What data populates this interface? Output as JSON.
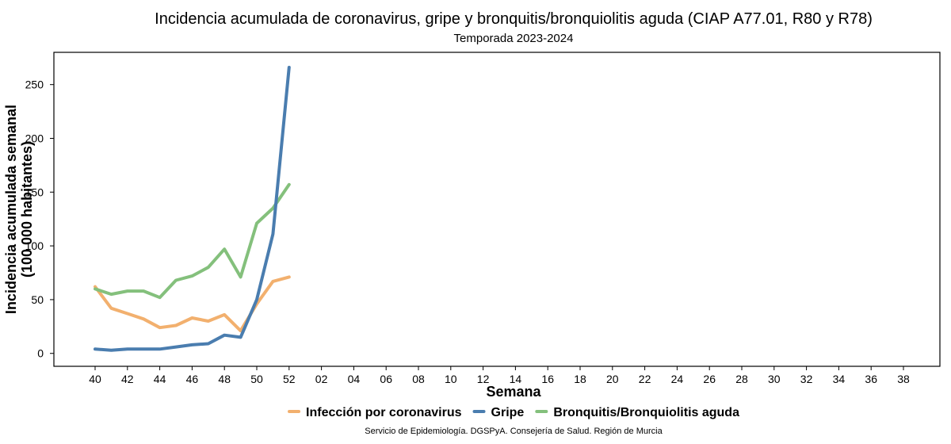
{
  "chart_data": {
    "type": "line",
    "title": "Incidencia acumulada de coronavirus, gripe y bronquitis/bronquiolitis aguda (CIAP A77.01, R80 y R78)",
    "subtitle": "Temporada 2023-2024",
    "xlabel": "Semana",
    "ylabel_lines": [
      "Incidencia acumulada semanal",
      "(100 000 habitantes)"
    ],
    "ylim": [
      -12,
      280
    ],
    "yticks": [
      0,
      50,
      100,
      150,
      200,
      250
    ],
    "week_order": [
      40,
      41,
      42,
      43,
      44,
      45,
      46,
      47,
      48,
      49,
      50,
      51,
      52,
      1,
      2,
      3,
      4,
      5,
      6,
      7,
      8,
      9,
      10,
      11,
      12,
      13,
      14,
      15,
      16,
      17,
      18,
      19,
      20,
      21,
      22,
      23,
      24,
      25,
      26,
      27,
      28,
      29,
      30,
      31,
      32,
      33,
      34,
      35,
      36,
      37,
      38,
      39
    ],
    "xtick_weeks": [
      40,
      42,
      44,
      46,
      48,
      50,
      52,
      2,
      4,
      6,
      8,
      10,
      12,
      14,
      16,
      18,
      20,
      22,
      24,
      26,
      28,
      30,
      32,
      34,
      36,
      38
    ],
    "xtick_labels": [
      "40",
      "42",
      "44",
      "46",
      "48",
      "50",
      "52",
      "02",
      "04",
      "06",
      "08",
      "10",
      "12",
      "14",
      "16",
      "18",
      "20",
      "22",
      "24",
      "26",
      "28",
      "30",
      "32",
      "34",
      "36",
      "38"
    ],
    "x": [
      40,
      41,
      42,
      43,
      44,
      45,
      46,
      47,
      48,
      49,
      50,
      51,
      52
    ],
    "series": [
      {
        "name": "Infección por coronavirus",
        "color": "#F2B06E",
        "values": [
          62,
          42,
          37,
          32,
          24,
          26,
          33,
          30,
          36,
          21,
          46,
          67,
          71
        ]
      },
      {
        "name": "Gripe",
        "color": "#4A7DAF",
        "values": [
          4,
          3,
          4,
          4,
          4,
          6,
          8,
          9,
          17,
          15,
          50,
          111,
          266
        ]
      },
      {
        "name": "Bronquitis/Bronquiolitis aguda",
        "color": "#84C07C",
        "values": [
          60,
          55,
          58,
          58,
          52,
          68,
          72,
          80,
          97,
          71,
          121,
          135,
          157
        ]
      }
    ],
    "grid": false,
    "legend_position": "bottom"
  },
  "footer": {
    "source": "Servicio de Epidemiología. DGSPyA. Consejería de Salud. Región de Murcia"
  }
}
